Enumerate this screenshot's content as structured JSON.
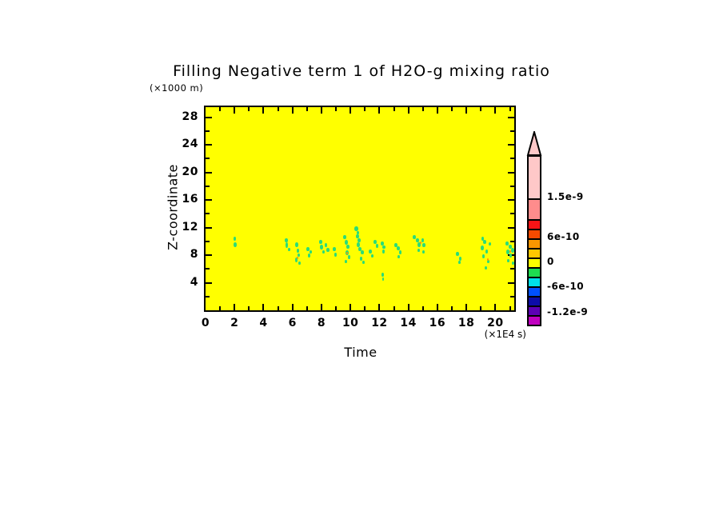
{
  "chart_data": {
    "type": "heatmap",
    "title": "Filling Negative term 1 of H2O-g mixing ratio",
    "xlabel": "Time",
    "x_unit": "(×1E4 s)",
    "ylabel": "Z-coordinate",
    "y_unit": "(×1000 m)",
    "xlim": [
      0,
      21.3
    ],
    "ylim": [
      0,
      30
    ],
    "x_tick_labels": [
      0,
      2,
      4,
      6,
      8,
      10,
      12,
      14,
      16,
      18,
      20
    ],
    "y_tick_labels": [
      4,
      8,
      12,
      16,
      20,
      24,
      28
    ],
    "grid": false,
    "legend_position": "right-colorbar",
    "background_color": "#FFFF00",
    "negative_fill_color": "#2ADC78",
    "positive_fill_color": "#FF9600",
    "negative_points": [
      [
        2.03,
        10.4,
        3,
        5
      ],
      [
        2.06,
        9.5,
        4,
        6
      ],
      [
        5.55,
        10.2,
        4,
        5
      ],
      [
        5.62,
        9.4,
        3,
        7
      ],
      [
        5.75,
        8.8,
        3,
        4
      ],
      [
        6.28,
        9.5,
        4,
        6
      ],
      [
        6.36,
        8.6,
        3,
        5
      ],
      [
        6.44,
        8.0,
        3,
        4
      ],
      [
        6.25,
        7.3,
        3,
        6
      ],
      [
        6.46,
        6.8,
        3,
        4
      ],
      [
        7.05,
        8.9,
        4,
        5
      ],
      [
        7.27,
        8.5,
        3,
        4
      ],
      [
        7.12,
        7.9,
        3,
        5
      ],
      [
        7.92,
        9.9,
        4,
        5
      ],
      [
        8.02,
        9.2,
        4,
        6
      ],
      [
        8.12,
        8.5,
        3,
        4
      ],
      [
        8.3,
        9.4,
        3,
        5
      ],
      [
        8.46,
        8.7,
        4,
        5
      ],
      [
        8.9,
        8.9,
        4,
        5
      ],
      [
        8.96,
        8.1,
        3,
        5
      ],
      [
        9.6,
        10.6,
        4,
        5
      ],
      [
        9.72,
        9.9,
        4,
        6
      ],
      [
        9.82,
        9.2,
        4,
        5
      ],
      [
        9.76,
        8.4,
        4,
        6
      ],
      [
        9.92,
        7.7,
        3,
        5
      ],
      [
        9.66,
        7.1,
        3,
        4
      ],
      [
        10.4,
        11.8,
        5,
        6
      ],
      [
        10.52,
        11.3,
        3,
        4
      ],
      [
        10.46,
        10.7,
        4,
        5
      ],
      [
        10.62,
        10.2,
        4,
        5
      ],
      [
        10.52,
        9.5,
        4,
        6
      ],
      [
        10.66,
        8.9,
        4,
        5
      ],
      [
        10.8,
        8.4,
        4,
        5
      ],
      [
        10.76,
        7.5,
        3,
        5
      ],
      [
        10.9,
        7.0,
        3,
        4
      ],
      [
        11.35,
        8.5,
        4,
        5
      ],
      [
        11.5,
        7.9,
        3,
        4
      ],
      [
        11.72,
        9.9,
        4,
        5
      ],
      [
        11.86,
        9.3,
        3,
        5
      ],
      [
        12.2,
        9.7,
        4,
        5
      ],
      [
        12.32,
        9.2,
        4,
        4
      ],
      [
        12.26,
        8.5,
        3,
        5
      ],
      [
        12.22,
        5.2,
        3,
        5
      ],
      [
        12.27,
        4.5,
        2,
        4
      ],
      [
        13.12,
        9.5,
        4,
        5
      ],
      [
        13.3,
        9.0,
        4,
        5
      ],
      [
        13.46,
        8.4,
        3,
        5
      ],
      [
        13.32,
        7.8,
        3,
        4
      ],
      [
        14.42,
        10.6,
        4,
        5
      ],
      [
        14.6,
        10.1,
        4,
        5
      ],
      [
        14.76,
        9.5,
        4,
        6
      ],
      [
        14.96,
        10.1,
        3,
        5
      ],
      [
        15.06,
        9.4,
        4,
        5
      ],
      [
        14.72,
        8.7,
        3,
        4
      ],
      [
        15.02,
        8.5,
        3,
        4
      ],
      [
        17.36,
        8.2,
        4,
        5
      ],
      [
        17.56,
        7.5,
        3,
        5
      ],
      [
        17.5,
        7.0,
        3,
        4
      ],
      [
        19.1,
        10.4,
        3,
        5
      ],
      [
        19.26,
        9.9,
        4,
        5
      ],
      [
        19.12,
        9.0,
        4,
        6
      ],
      [
        19.4,
        8.5,
        3,
        5
      ],
      [
        19.2,
        7.8,
        3,
        5
      ],
      [
        19.5,
        7.1,
        3,
        4
      ],
      [
        19.32,
        6.2,
        3,
        4
      ],
      [
        19.62,
        9.6,
        3,
        4
      ],
      [
        20.8,
        9.7,
        4,
        5
      ],
      [
        21.0,
        9.2,
        4,
        5
      ],
      [
        20.86,
        8.5,
        4,
        6
      ],
      [
        21.06,
        7.9,
        3,
        5
      ],
      [
        20.9,
        7.2,
        3,
        4
      ],
      [
        21.2,
        6.8,
        3,
        4
      ],
      [
        21.3,
        8.7,
        4,
        6
      ]
    ],
    "positive_points": [
      [
        9.78,
        8.3
      ],
      [
        6.37,
        7.6
      ],
      [
        14.82,
        9.9
      ],
      [
        19.46,
        7.4
      ],
      [
        21.02,
        8.6
      ]
    ],
    "colorbar": {
      "labels": [
        "1.5e-9",
        "6e-10",
        "0",
        "-6e-10",
        "-1.2e-9"
      ],
      "palette_top_to_bottom": [
        "#FFC8C8",
        "#FF8C8C",
        "#F81416",
        "#F64A00",
        "#FA9600",
        "#FFC800",
        "#FFFF00",
        "#1EDC50",
        "#00E0E8",
        "#0050FF",
        "#0C0CA8",
        "#5C00B4",
        "#C000C0"
      ],
      "arrow_fill": "#FFC8C8",
      "above_range_arrow": true
    }
  }
}
